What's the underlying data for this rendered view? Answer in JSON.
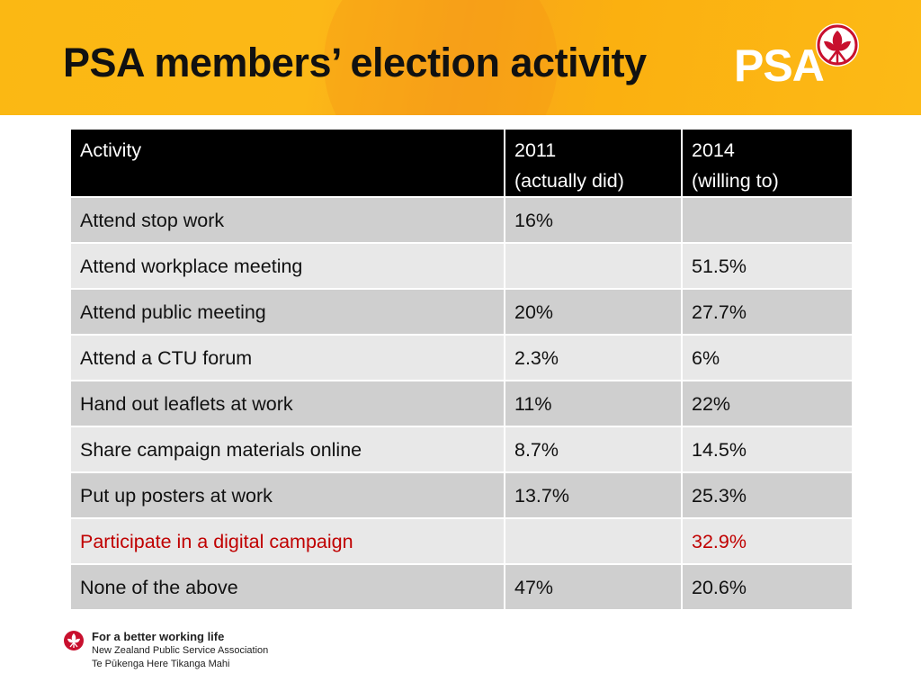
{
  "slide": {
    "title": "PSA members’ election activity"
  },
  "logo": {
    "text": "PSA"
  },
  "table": {
    "headers": [
      {
        "line1": "Activity",
        "line2": ""
      },
      {
        "line1": "2011",
        "line2": "(actually did)"
      },
      {
        "line1": "2014",
        "line2": "(willing to)"
      }
    ],
    "rows": [
      {
        "activity": "Attend stop work",
        "y2011": "16%",
        "y2014": ""
      },
      {
        "activity": "Attend workplace meeting",
        "y2011": "",
        "y2014": "51.5%"
      },
      {
        "activity": "Attend public meeting",
        "y2011": "20%",
        "y2014": "27.7%"
      },
      {
        "activity": "Attend a CTU forum",
        "y2011": "2.3%",
        "y2014": "6%"
      },
      {
        "activity": "Hand out leaflets at work",
        "y2011": "11%",
        "y2014": "22%"
      },
      {
        "activity": "Share campaign materials online",
        "y2011": "8.7%",
        "y2014": "14.5%"
      },
      {
        "activity": "Put up posters at work",
        "y2011": "13.7%",
        "y2014": "25.3%"
      },
      {
        "activity": "Participate in a digital campaign",
        "y2011": "",
        "y2014": "32.9%"
      },
      {
        "activity": "None of the above",
        "y2011": "47%",
        "y2014": "20.6%"
      }
    ],
    "highlight_color": "#c00000"
  },
  "footer": {
    "tagline": "For a better working life",
    "org_name": "New Zealand Public Service Association",
    "org_name_maori": "Te Pūkenga Here Tikanga Mahi"
  },
  "colors": {
    "header_bg": "#fbb813",
    "table_header_bg": "#000000",
    "row_dark": "#cfcfcf",
    "row_light": "#e8e8e8",
    "brand_red": "#c8102e"
  }
}
